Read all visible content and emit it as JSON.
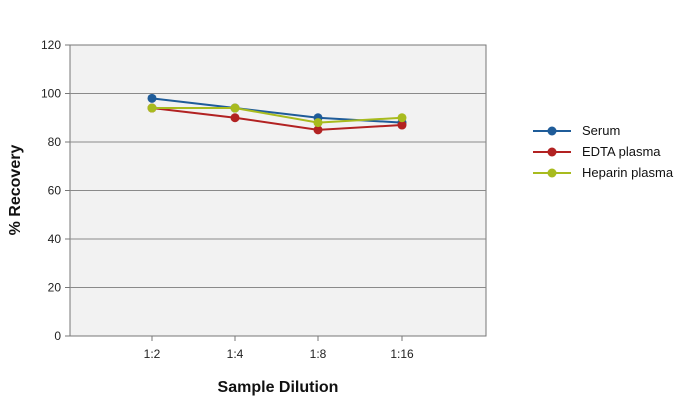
{
  "chart_data": {
    "type": "line",
    "title": "",
    "xlabel": "Sample Dilution",
    "ylabel": "% Recovery",
    "categories": [
      "1:2",
      "1:4",
      "1:8",
      "1:16"
    ],
    "ylim": [
      0,
      120
    ],
    "yticks": [
      0,
      20,
      40,
      60,
      80,
      100,
      120
    ],
    "grid": true,
    "legend_position": "right",
    "plot_background": "#f2f2f2",
    "series": [
      {
        "name": "Serum",
        "values": [
          98,
          94,
          90,
          88
        ],
        "color": "#1f5c99"
      },
      {
        "name": "EDTA plasma",
        "values": [
          94,
          90,
          85,
          87
        ],
        "color": "#b22222"
      },
      {
        "name": "Heparin plasma",
        "values": [
          94,
          94,
          88,
          90
        ],
        "color": "#a8bb1e"
      }
    ]
  }
}
